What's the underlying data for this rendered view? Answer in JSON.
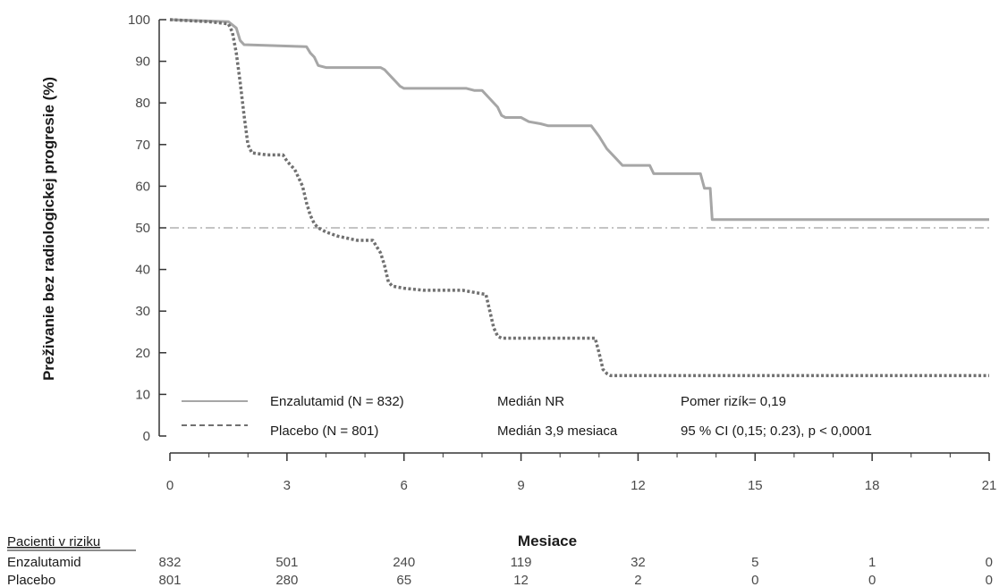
{
  "chart_data": {
    "type": "line",
    "ylabel": "Preživanie bez radiologickej progresie (%)",
    "xlabel": "Mesiace",
    "xlim": [
      0,
      21
    ],
    "ylim": [
      0,
      100
    ],
    "x_ticks": [
      0,
      3,
      6,
      9,
      12,
      15,
      18,
      21
    ],
    "y_ticks": [
      0,
      10,
      20,
      30,
      40,
      50,
      60,
      70,
      80,
      90,
      100
    ],
    "reference_line": {
      "y": 50,
      "style": "dash-dot"
    },
    "series": [
      {
        "name": "Enzalutamid (N = 832)",
        "style": "solid",
        "color": "#a6a6a6",
        "points": [
          [
            0,
            100
          ],
          [
            1.5,
            99.5
          ],
          [
            1.7,
            98
          ],
          [
            1.8,
            95
          ],
          [
            1.9,
            94
          ],
          [
            3.5,
            93.5
          ],
          [
            3.6,
            92
          ],
          [
            3.7,
            91
          ],
          [
            3.8,
            89
          ],
          [
            4.0,
            88.5
          ],
          [
            5.4,
            88.5
          ],
          [
            5.5,
            88
          ],
          [
            5.6,
            87
          ],
          [
            5.7,
            86
          ],
          [
            5.8,
            85
          ],
          [
            5.9,
            84
          ],
          [
            6.0,
            83.5
          ],
          [
            7.6,
            83.5
          ],
          [
            7.8,
            83
          ],
          [
            8.0,
            83
          ],
          [
            8.2,
            81
          ],
          [
            8.4,
            79
          ],
          [
            8.5,
            77
          ],
          [
            8.6,
            76.5
          ],
          [
            9.0,
            76.5
          ],
          [
            9.2,
            75.5
          ],
          [
            9.5,
            75
          ],
          [
            9.7,
            74.5
          ],
          [
            10.8,
            74.5
          ],
          [
            11.0,
            72
          ],
          [
            11.2,
            69
          ],
          [
            11.4,
            67
          ],
          [
            11.6,
            65
          ],
          [
            12.3,
            65
          ],
          [
            12.4,
            63
          ],
          [
            13.6,
            63
          ],
          [
            13.7,
            59.5
          ],
          [
            13.85,
            59.5
          ],
          [
            13.9,
            52
          ],
          [
            21,
            52
          ]
        ]
      },
      {
        "name": "Placebo (N = 801)",
        "style": "dotted",
        "color": "#707070",
        "points": [
          [
            0,
            100
          ],
          [
            1.0,
            99.5
          ],
          [
            1.5,
            99
          ],
          [
            1.6,
            97
          ],
          [
            1.7,
            92
          ],
          [
            1.8,
            85
          ],
          [
            1.9,
            77
          ],
          [
            2.0,
            70
          ],
          [
            2.1,
            68
          ],
          [
            2.5,
            67.5
          ],
          [
            2.9,
            67.5
          ],
          [
            3.0,
            66
          ],
          [
            3.2,
            64
          ],
          [
            3.4,
            60
          ],
          [
            3.5,
            56
          ],
          [
            3.6,
            53
          ],
          [
            3.7,
            51
          ],
          [
            3.8,
            50
          ],
          [
            4.0,
            49
          ],
          [
            4.3,
            48
          ],
          [
            4.8,
            47
          ],
          [
            5.2,
            47
          ],
          [
            5.4,
            44
          ],
          [
            5.5,
            41
          ],
          [
            5.6,
            37
          ],
          [
            5.7,
            36
          ],
          [
            6.0,
            35.5
          ],
          [
            6.5,
            35
          ],
          [
            7.5,
            35
          ],
          [
            8.1,
            34
          ],
          [
            8.2,
            30
          ],
          [
            8.3,
            26
          ],
          [
            8.4,
            24
          ],
          [
            8.5,
            23.5
          ],
          [
            10.5,
            23.5
          ],
          [
            10.9,
            23.5
          ],
          [
            11.0,
            20
          ],
          [
            11.1,
            16
          ],
          [
            11.2,
            15
          ],
          [
            11.3,
            14.5
          ],
          [
            21,
            14.5
          ]
        ]
      }
    ]
  },
  "legend": {
    "rows": [
      {
        "series": "Enzalutamid (N = 832)",
        "median": "Medián NR",
        "stat": "Pomer rizík= 0,19"
      },
      {
        "series": "Placebo (N = 801)",
        "median": "Medián 3,9 mesiaca",
        "stat": "95 % CI (0,15; 0.23), p < 0,0001"
      }
    ]
  },
  "risk_table": {
    "title": "Pacienti v riziku",
    "rows": [
      {
        "label": "Enzalutamid",
        "values": [
          "832",
          "501",
          "240",
          "119",
          "32",
          "5",
          "1",
          "0"
        ]
      },
      {
        "label": "Placebo",
        "values": [
          "801",
          "280",
          "65",
          "12",
          "2",
          "0",
          "0",
          "0"
        ]
      }
    ]
  }
}
